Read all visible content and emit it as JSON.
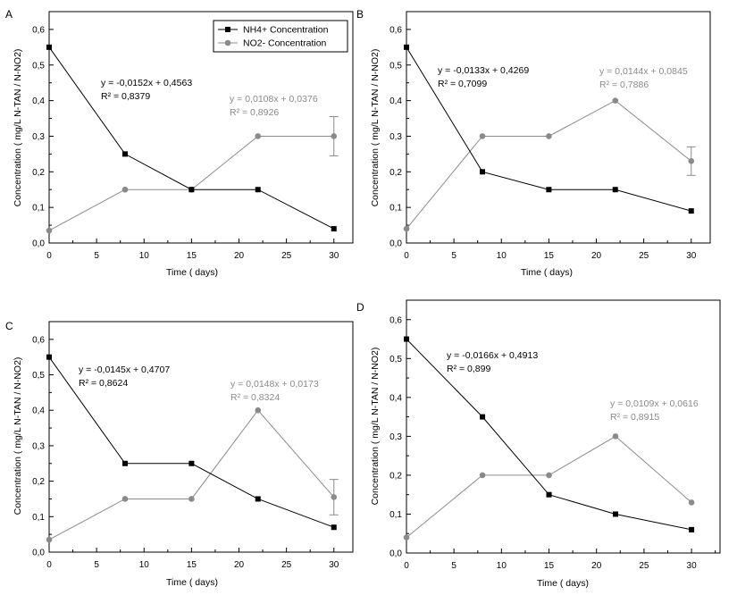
{
  "figure": {
    "legend": [
      {
        "label": "NH4+ Concentration",
        "color": "#000000",
        "marker": "square"
      },
      {
        "label": "NO2- Concentration",
        "color": "#8a8a8a",
        "marker": "circle"
      }
    ]
  },
  "chart_data": [
    {
      "type": "line",
      "panel": "A",
      "xlabel": "Time (   days)",
      "ylabel": "Concentration (  mg/L N-TAN / N-NO2)",
      "xlim": [
        0,
        32
      ],
      "ylim": [
        0,
        0.65
      ],
      "x_ticks": [
        "0",
        "5",
        "10",
        "15",
        "20",
        "25",
        "30"
      ],
      "y_ticks": [
        "0,0",
        "0,1",
        "0,2",
        "0,3",
        "0,4",
        "0,5",
        "0,6"
      ],
      "y_tick_values": [
        0,
        0.1,
        0.2,
        0.3,
        0.4,
        0.5,
        0.6
      ],
      "x_tick_values": [
        0,
        5,
        10,
        15,
        20,
        25,
        30
      ],
      "grid": false,
      "legend_position": "top-right",
      "series": [
        {
          "name": "NH4+ Concentration",
          "color": "#000000",
          "marker": "square",
          "x": [
            0,
            8,
            15,
            22,
            30
          ],
          "values": [
            0.55,
            0.25,
            0.15,
            0.15,
            0.04
          ]
        },
        {
          "name": "NO2- Concentration",
          "color": "#8a8a8a",
          "marker": "circle",
          "x": [
            0,
            8,
            15,
            22,
            30
          ],
          "values": [
            0.035,
            0.15,
            0.15,
            0.3,
            0.3
          ],
          "error_bar": {
            "x": 30,
            "low": 0.245,
            "high": 0.355
          }
        }
      ],
      "annotations": [
        {
          "lines": [
            "y = -0,0152x + 0,4563",
            "R² = 0,8379"
          ],
          "series": "NH4+ Concentration"
        },
        {
          "lines": [
            "y = 0,0108x + 0,0376",
            "R² = 0,8926"
          ],
          "series": "NO2- Concentration"
        }
      ]
    },
    {
      "type": "line",
      "panel": "B",
      "xlabel": "Time (   days)",
      "ylabel": "Concentration (  mg/L N-TAN / N-NO2)",
      "xlim": [
        0,
        32
      ],
      "ylim": [
        0,
        0.65
      ],
      "x_ticks": [
        "0",
        "5",
        "10",
        "15",
        "20",
        "25",
        "30"
      ],
      "y_ticks": [
        "0,0",
        "0,1",
        "0,2",
        "0,3",
        "0,4",
        "0,5",
        "0,6"
      ],
      "y_tick_values": [
        0,
        0.1,
        0.2,
        0.3,
        0.4,
        0.5,
        0.6
      ],
      "x_tick_values": [
        0,
        5,
        10,
        15,
        20,
        25,
        30
      ],
      "grid": false,
      "series": [
        {
          "name": "NH4+ Concentration",
          "color": "#000000",
          "marker": "square",
          "x": [
            0,
            8,
            15,
            22,
            30
          ],
          "values": [
            0.55,
            0.2,
            0.15,
            0.15,
            0.09
          ]
        },
        {
          "name": "NO2- Concentration",
          "color": "#8a8a8a",
          "marker": "circle",
          "x": [
            0,
            8,
            15,
            22,
            30
          ],
          "values": [
            0.04,
            0.3,
            0.3,
            0.4,
            0.23
          ],
          "error_bar": {
            "x": 30,
            "low": 0.19,
            "high": 0.27
          }
        }
      ],
      "annotations": [
        {
          "lines": [
            "y = -0,0133x + 0,4269",
            "R² = 0,7099"
          ],
          "series": "NH4+ Concentration"
        },
        {
          "lines": [
            "y = 0,0144x + 0,0845",
            "R² = 0,7886"
          ],
          "series": "NO2- Concentration"
        }
      ]
    },
    {
      "type": "line",
      "panel": "C",
      "xlabel": "Time (   days)",
      "ylabel": "Concentration (  mg/L N-TAN / N-NO2)",
      "xlim": [
        0,
        32
      ],
      "ylim": [
        0,
        0.65
      ],
      "x_ticks": [
        "0",
        "5",
        "10",
        "15",
        "20",
        "25",
        "30"
      ],
      "y_ticks": [
        "0,0",
        "0,1",
        "0,2",
        "0,3",
        "0,4",
        "0,5",
        "0,6"
      ],
      "y_tick_values": [
        0,
        0.1,
        0.2,
        0.3,
        0.4,
        0.5,
        0.6
      ],
      "x_tick_values": [
        0,
        5,
        10,
        15,
        20,
        25,
        30
      ],
      "grid": false,
      "series": [
        {
          "name": "NH4+ Concentration",
          "color": "#000000",
          "marker": "square",
          "x": [
            0,
            8,
            15,
            22,
            30
          ],
          "values": [
            0.55,
            0.25,
            0.25,
            0.15,
            0.07
          ]
        },
        {
          "name": "NO2- Concentration",
          "color": "#8a8a8a",
          "marker": "circle",
          "x": [
            0,
            8,
            15,
            22,
            30
          ],
          "values": [
            0.035,
            0.15,
            0.15,
            0.4,
            0.155
          ],
          "error_bar": {
            "x": 30,
            "low": 0.105,
            "high": 0.205
          }
        }
      ],
      "annotations": [
        {
          "lines": [
            "y = -0,0145x + 0,4707",
            "R² = 0,8624"
          ],
          "series": "NH4+ Concentration"
        },
        {
          "lines": [
            "y = 0,0148x + 0,0173",
            "R² = 0,8324"
          ],
          "series": "NO2- Concentration"
        }
      ]
    },
    {
      "type": "line",
      "panel": "D",
      "xlabel": "Time (   days)",
      "ylabel": "Concentration (  mg/L N-TAN / N-NO2)",
      "xlim": [
        0,
        33
      ],
      "ylim": [
        0,
        0.65
      ],
      "x_ticks": [
        "0",
        "5",
        "10",
        "15",
        "20",
        "25",
        "30"
      ],
      "y_ticks": [
        "0,0",
        "0,1",
        "0,2",
        "0,3",
        "0,4",
        "0,5",
        "0,6"
      ],
      "y_tick_values": [
        0,
        0.1,
        0.2,
        0.3,
        0.4,
        0.5,
        0.6
      ],
      "x_tick_values": [
        0,
        5,
        10,
        15,
        20,
        25,
        30
      ],
      "grid": false,
      "series": [
        {
          "name": "NH4+ Concentration",
          "color": "#000000",
          "marker": "square",
          "x": [
            0,
            8,
            15,
            22,
            30
          ],
          "values": [
            0.55,
            0.35,
            0.15,
            0.1,
            0.06
          ]
        },
        {
          "name": "NO2- Concentration",
          "color": "#8a8a8a",
          "marker": "circle",
          "x": [
            0,
            8,
            15,
            22,
            30
          ],
          "values": [
            0.04,
            0.2,
            0.2,
            0.3,
            0.13
          ]
        }
      ],
      "annotations": [
        {
          "lines": [
            "y = -0,0166x + 0,4913",
            "R² = 0,899"
          ],
          "series": "NH4+ Concentration"
        },
        {
          "lines": [
            "y = 0,0109x + 0,0616",
            "R² = 0,8915"
          ],
          "series": "NO2- Concentration"
        }
      ]
    }
  ]
}
